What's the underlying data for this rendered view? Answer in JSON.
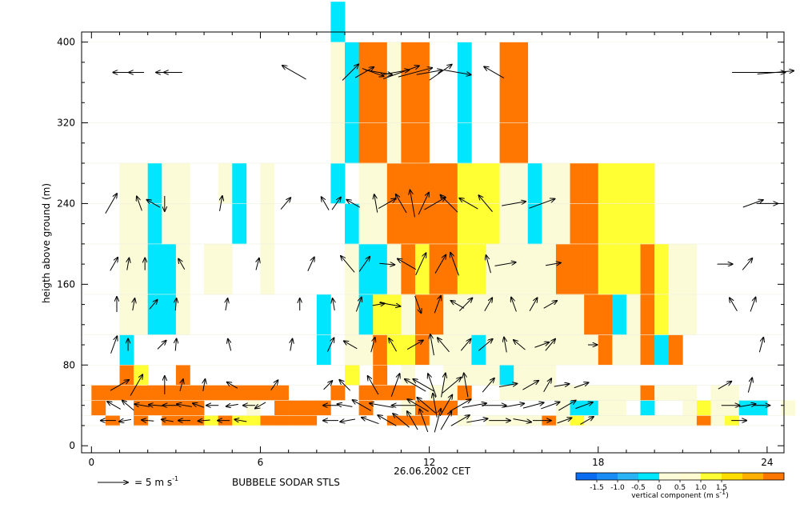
{
  "chart_data": {
    "type": "heatmap",
    "ylabel": "heigth above ground (m)",
    "xlabel": "26.06.2002 CET",
    "station": "BUBBELE SODAR STLS",
    "arrow_legend": {
      "speed": 5,
      "label": "= 5 m s",
      "exp": "-1"
    },
    "xlim": [
      -0.35,
      24.6
    ],
    "ylim": [
      -7,
      410
    ],
    "x_ticks": [
      0,
      6,
      12,
      18,
      24
    ],
    "y_ticks": [
      0,
      80,
      160,
      240,
      320,
      400
    ],
    "colorbar": {
      "title": "vertical component (m s",
      "title_exp": "-1",
      "title_close": ")",
      "ticks": [
        "-1.5",
        "-1.0",
        "-0.5",
        "0",
        "0.5",
        "1.0",
        "1.5"
      ],
      "colors": [
        "#0a6cf0",
        "#1a8cf5",
        "#2ab4f5",
        "#00e6ff",
        "#fbfbd8",
        "#fffad0",
        "#ffff33",
        "#ffdd00",
        "#ffb000",
        "#ff7700"
      ]
    },
    "color_classes": {
      "C": "#00e6ff",
      "P": "#fbfbd8",
      "Y": "#ffff33",
      "O": "#ff7700"
    },
    "time_step": 0.5,
    "time_start": 0,
    "layers": [
      {
        "bottom": 20,
        "top": 30,
        "row": "-O.O.OOOYOYYOOOO.....OOO..P.PPPPOPYPPPPPPPPOPY.....O.O..Y...OOY"
      },
      {
        "bottom": 30,
        "top": 45,
        "row": "O..OOOOO...P.OOOO..O..POOO.......PCCPP.C..PYPPCC.P...........PPP"
      },
      {
        "bottom": 45,
        "top": 60,
        "row": "OOOOOOOOOOOOOO...O.OOOO.PPO..PPPPPPPPPPOPPP.PP.............POO.."
      },
      {
        "bottom": 60,
        "top": 80,
        "row": "..OY..O...........Y.O.P..PPPPCPPP..........................C.P.."
      },
      {
        "bottom": 80,
        "top": 110,
        "row": "..C.............C.PPOYYOPPPCPPPPPPPPOPPOCO.................CPP."
      },
      {
        "bottom": 110,
        "top": 150,
        "row": "..PPCCP.........C.PCYYPOOPPPPPPPPPPOOCPOYPP..................CPP"
      },
      {
        "bottom": 150,
        "top": 200,
        "row": "..PPCCP.PP..P.....PCCPOYOOYYPPPPPOOOYYYOYPP..................PCP"
      },
      {
        "bottom": 200,
        "top": 240,
        "row": "..PPCPP...C.P.....CPPOOOOOYYYPPCPPOOYYYY......................PCP"
      },
      {
        "bottom": 240,
        "top": 280,
        "row": "..PPCPP..PC.P....C.PPOOOOOYYYPPCPPOOYYYY......................PCP"
      },
      {
        "bottom": 280,
        "top": 320,
        "row": ".................PCOOPOO..C..OO..............................."
      },
      {
        "bottom": 320,
        "top": 400,
        "row": ".................PCOOPOO..C..OO..............................."
      },
      {
        "bottom": 400,
        "top": 440,
        "row": ".................C..............................................."
      }
    ],
    "wind_arrows": [
      [
        1.2,
        370,
        270,
        1.6
      ],
      [
        1.6,
        370,
        270,
        1.0
      ],
      [
        2.7,
        370,
        270,
        1.5
      ],
      [
        2.9,
        370,
        270,
        1.2
      ],
      [
        7.2,
        370,
        300,
        1.8
      ],
      [
        9.2,
        370,
        45,
        1.5
      ],
      [
        9.7,
        370,
        60,
        1.4
      ],
      [
        10.0,
        370,
        110,
        1.5
      ],
      [
        10.2,
        370,
        100,
        1.8
      ],
      [
        10.8,
        370,
        80,
        1.8
      ],
      [
        11.0,
        370,
        70,
        2.5
      ],
      [
        11.5,
        370,
        75,
        2.3
      ],
      [
        12.0,
        370,
        80,
        1.7
      ],
      [
        12.4,
        370,
        55,
        1.8
      ],
      [
        13.0,
        370,
        100,
        1.8
      ],
      [
        14.3,
        370,
        300,
        1.5
      ],
      [
        23.7,
        370,
        90,
        3.5
      ],
      [
        24.3,
        370,
        85,
        2.4
      ],
      [
        0.7,
        240,
        30,
        1.5
      ],
      [
        1.7,
        240,
        340,
        1.0
      ],
      [
        2.2,
        240,
        300,
        1.0
      ],
      [
        2.6,
        240,
        180,
        1.0
      ],
      [
        4.6,
        240,
        10,
        1.0
      ],
      [
        6.9,
        240,
        40,
        1.0
      ],
      [
        8.3,
        240,
        330,
        1.0
      ],
      [
        8.7,
        240,
        35,
        1.0
      ],
      [
        9.3,
        240,
        300,
        1.0
      ],
      [
        10.1,
        240,
        350,
        1.2
      ],
      [
        10.5,
        240,
        60,
        1.3
      ],
      [
        11.0,
        240,
        330,
        1.4
      ],
      [
        11.4,
        240,
        350,
        1.8
      ],
      [
        11.8,
        240,
        25,
        1.6
      ],
      [
        12.2,
        240,
        60,
        1.6
      ],
      [
        12.7,
        240,
        315,
        1.6
      ],
      [
        13.4,
        240,
        300,
        1.4
      ],
      [
        14.0,
        240,
        320,
        1.4
      ],
      [
        15.0,
        240,
        80,
        1.6
      ],
      [
        16.0,
        240,
        70,
        1.8
      ],
      [
        23.5,
        240,
        70,
        1.4
      ],
      [
        24.0,
        240,
        90,
        1.4
      ],
      [
        0.8,
        180,
        30,
        1.0
      ],
      [
        1.3,
        180,
        10,
        0.8
      ],
      [
        1.9,
        180,
        0,
        0.8
      ],
      [
        3.2,
        180,
        330,
        0.8
      ],
      [
        5.9,
        180,
        15,
        0.8
      ],
      [
        7.8,
        180,
        25,
        1.0
      ],
      [
        9.1,
        180,
        320,
        1.4
      ],
      [
        9.7,
        180,
        35,
        1.2
      ],
      [
        10.5,
        180,
        95,
        1.0
      ],
      [
        11.2,
        180,
        300,
        1.4
      ],
      [
        11.7,
        180,
        25,
        1.6
      ],
      [
        12.4,
        180,
        30,
        1.4
      ],
      [
        12.9,
        180,
        340,
        1.6
      ],
      [
        14.1,
        180,
        345,
        1.2
      ],
      [
        14.7,
        180,
        80,
        1.4
      ],
      [
        16.4,
        180,
        80,
        1.0
      ],
      [
        22.5,
        180,
        90,
        1.0
      ],
      [
        23.3,
        180,
        40,
        1.0
      ],
      [
        0.9,
        140,
        0,
        1.0
      ],
      [
        1.5,
        140,
        10,
        0.8
      ],
      [
        2.2,
        140,
        40,
        0.8
      ],
      [
        3.0,
        140,
        5,
        0.8
      ],
      [
        4.8,
        140,
        10,
        0.8
      ],
      [
        7.4,
        140,
        0,
        0.8
      ],
      [
        8.6,
        140,
        350,
        0.8
      ],
      [
        9.5,
        140,
        20,
        1.0
      ],
      [
        10.2,
        140,
        80,
        0.8
      ],
      [
        10.6,
        140,
        100,
        1.4
      ],
      [
        11.6,
        140,
        160,
        1.2
      ],
      [
        12.3,
        140,
        20,
        1.2
      ],
      [
        13.0,
        140,
        300,
        1.0
      ],
      [
        13.3,
        140,
        45,
        1.2
      ],
      [
        14.1,
        140,
        30,
        1.0
      ],
      [
        15.0,
        140,
        340,
        1.0
      ],
      [
        15.7,
        140,
        30,
        1.0
      ],
      [
        16.3,
        140,
        60,
        1.0
      ],
      [
        22.8,
        140,
        330,
        1.0
      ],
      [
        23.5,
        140,
        20,
        1.0
      ],
      [
        0.8,
        100,
        20,
        1.2
      ],
      [
        1.3,
        100,
        0,
        0.8
      ],
      [
        2.5,
        100,
        45,
        0.8
      ],
      [
        3.0,
        100,
        5,
        0.8
      ],
      [
        4.9,
        100,
        345,
        0.8
      ],
      [
        7.1,
        100,
        10,
        0.8
      ],
      [
        8.5,
        100,
        25,
        1.0
      ],
      [
        9.2,
        100,
        300,
        1.0
      ],
      [
        10.0,
        100,
        15,
        1.0
      ],
      [
        10.7,
        100,
        330,
        1.0
      ],
      [
        11.5,
        100,
        60,
        1.2
      ],
      [
        12.1,
        100,
        350,
        1.4
      ],
      [
        12.5,
        100,
        320,
        1.2
      ],
      [
        13.3,
        100,
        40,
        1.0
      ],
      [
        14.0,
        100,
        50,
        1.2
      ],
      [
        14.7,
        100,
        350,
        1.0
      ],
      [
        15.2,
        100,
        310,
        1.0
      ],
      [
        16.0,
        100,
        70,
        1.0
      ],
      [
        16.3,
        100,
        40,
        1.0
      ],
      [
        17.8,
        100,
        90,
        0.6
      ],
      [
        23.8,
        100,
        15,
        1.0
      ],
      [
        1.6,
        60,
        30,
        1.6
      ],
      [
        1.0,
        60,
        60,
        1.4
      ],
      [
        2.6,
        60,
        0,
        1.2
      ],
      [
        3.2,
        60,
        15,
        0.8
      ],
      [
        4.0,
        60,
        10,
        0.8
      ],
      [
        5.0,
        60,
        300,
        0.8
      ],
      [
        6.5,
        60,
        35,
        0.8
      ],
      [
        8.4,
        60,
        45,
        0.8
      ],
      [
        9.0,
        60,
        315,
        1.0
      ],
      [
        10.0,
        60,
        330,
        1.4
      ],
      [
        10.8,
        60,
        20,
        1.6
      ],
      [
        11.5,
        60,
        300,
        1.6
      ],
      [
        11.8,
        60,
        300,
        1.6
      ],
      [
        12.1,
        60,
        340,
        1.6
      ],
      [
        12.5,
        60,
        10,
        1.6
      ],
      [
        12.8,
        60,
        50,
        1.6
      ],
      [
        13.3,
        60,
        350,
        1.6
      ],
      [
        14.1,
        60,
        40,
        1.2
      ],
      [
        14.8,
        60,
        80,
        1.2
      ],
      [
        15.6,
        60,
        60,
        1.2
      ],
      [
        16.2,
        60,
        30,
        1.0
      ],
      [
        16.7,
        60,
        80,
        1.0
      ],
      [
        17.4,
        60,
        70,
        1.0
      ],
      [
        22.5,
        60,
        60,
        1.0
      ],
      [
        23.4,
        60,
        15,
        1.0
      ],
      [
        0.8,
        40,
        300,
        1.0
      ],
      [
        1.3,
        40,
        310,
        1.0
      ],
      [
        1.8,
        40,
        280,
        1.0
      ],
      [
        2.3,
        40,
        275,
        1.0
      ],
      [
        2.8,
        40,
        270,
        1.0
      ],
      [
        3.3,
        40,
        280,
        1.0
      ],
      [
        3.8,
        40,
        290,
        0.8
      ],
      [
        4.3,
        40,
        270,
        0.8
      ],
      [
        5.0,
        40,
        260,
        0.8
      ],
      [
        5.6,
        40,
        270,
        0.8
      ],
      [
        6.0,
        40,
        240,
        0.8
      ],
      [
        8.5,
        40,
        270,
        1.0
      ],
      [
        9.0,
        40,
        280,
        1.0
      ],
      [
        9.6,
        40,
        300,
        1.4
      ],
      [
        10.3,
        40,
        280,
        1.6
      ],
      [
        11.1,
        40,
        270,
        1.6
      ],
      [
        11.6,
        40,
        300,
        1.6
      ],
      [
        11.9,
        40,
        310,
        1.6
      ],
      [
        12.2,
        40,
        350,
        1.6
      ],
      [
        12.6,
        40,
        30,
        1.6
      ],
      [
        13.1,
        40,
        60,
        1.6
      ],
      [
        13.6,
        40,
        80,
        1.6
      ],
      [
        14.3,
        40,
        90,
        1.6
      ],
      [
        15.0,
        40,
        80,
        1.4
      ],
      [
        15.7,
        40,
        75,
        1.4
      ],
      [
        16.3,
        40,
        70,
        1.3
      ],
      [
        16.9,
        40,
        60,
        1.3
      ],
      [
        17.5,
        40,
        70,
        1.2
      ],
      [
        22.7,
        40,
        90,
        1.2
      ],
      [
        23.3,
        40,
        80,
        1.1
      ],
      [
        23.8,
        40,
        90,
        1.1
      ],
      [
        0.6,
        25,
        270,
        1.0
      ],
      [
        1.2,
        25,
        260,
        0.8
      ],
      [
        2.0,
        25,
        275,
        0.8
      ],
      [
        2.7,
        25,
        280,
        0.8
      ],
      [
        3.3,
        25,
        270,
        0.8
      ],
      [
        4.0,
        25,
        265,
        0.8
      ],
      [
        4.7,
        25,
        270,
        0.8
      ],
      [
        5.3,
        25,
        280,
        0.8
      ],
      [
        8.5,
        25,
        270,
        1.0
      ],
      [
        9.1,
        25,
        260,
        1.0
      ],
      [
        9.9,
        25,
        290,
        1.2
      ],
      [
        10.5,
        25,
        300,
        1.4
      ],
      [
        11.0,
        25,
        310,
        1.4
      ],
      [
        11.4,
        25,
        330,
        1.4
      ],
      [
        11.8,
        25,
        340,
        1.6
      ],
      [
        12.3,
        25,
        15,
        1.6
      ],
      [
        12.6,
        25,
        30,
        1.4
      ],
      [
        13.1,
        25,
        60,
        1.4
      ],
      [
        13.7,
        25,
        80,
        1.4
      ],
      [
        14.5,
        25,
        90,
        1.4
      ],
      [
        15.3,
        25,
        100,
        1.2
      ],
      [
        16.0,
        25,
        90,
        1.2
      ],
      [
        16.8,
        25,
        70,
        1.0
      ],
      [
        17.6,
        25,
        60,
        1.0
      ],
      [
        23.0,
        25,
        90,
        1.0
      ]
    ]
  }
}
